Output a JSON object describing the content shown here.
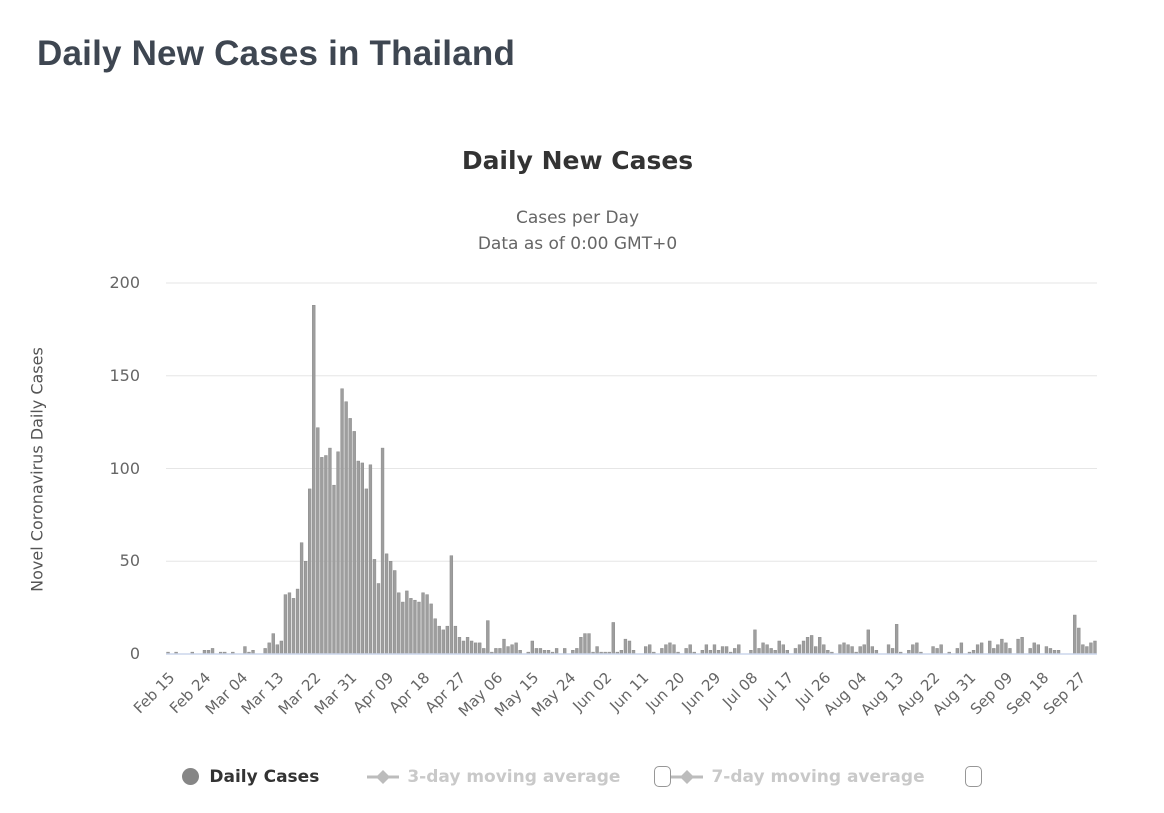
{
  "page": {
    "title": "Daily New Cases in Thailand"
  },
  "chart": {
    "title": "Daily New Cases",
    "subtitle_line1": "Cases per Day",
    "subtitle_line2": "Data as of 0:00 GMT+0",
    "y_axis_title": "Novel Coronavirus Daily Cases",
    "colors": {
      "bar_fill": "#9e9e9e",
      "bar_stroke": "#8a8a8a",
      "grid_line": "#e6e6e6",
      "axis_line": "#ccd6eb",
      "title_text": "#333333",
      "muted_text": "#666666",
      "page_title_text": "#3e4651",
      "disabled_legend_text": "#c9c9c9",
      "legend_marker": "#868686",
      "avg_marker": "#bcbcbc"
    }
  },
  "chart_data": {
    "type": "bar",
    "title": "Daily New Cases",
    "subtitle": [
      "Cases per Day",
      "Data as of 0:00 GMT+0"
    ],
    "xlabel": "",
    "ylabel": "Novel Coronavirus Daily Cases",
    "ylim": [
      0,
      200
    ],
    "yticks": [
      0,
      50,
      100,
      150,
      200
    ],
    "grid": true,
    "legend_position": "bottom",
    "legend_items": [
      "Daily Cases",
      "3-day moving average",
      "7-day moving average"
    ],
    "x_tick_interval": 9,
    "x_tick_labels": [
      "Feb 15",
      "Feb 24",
      "Mar 04",
      "Mar 13",
      "Mar 22",
      "Mar 31",
      "Apr 09",
      "Apr 18",
      "Apr 27",
      "May 06",
      "May 15",
      "May 24",
      "Jun 02",
      "Jun 11",
      "Jun 20",
      "Jun 29",
      "Jul 08",
      "Jul 17",
      "Jul 26",
      "Aug 04",
      "Aug 13",
      "Aug 22",
      "Aug 31",
      "Sep 09",
      "Sep 18",
      "Sep 27"
    ],
    "x_start_date": "Feb 15",
    "series": [
      {
        "name": "Daily Cases",
        "values": [
          1,
          0,
          1,
          0,
          0,
          0,
          1,
          0,
          0,
          2,
          2,
          3,
          0,
          1,
          1,
          0,
          1,
          0,
          0,
          4,
          1,
          2,
          0,
          0,
          3,
          6,
          11,
          5,
          7,
          32,
          33,
          30,
          35,
          60,
          50,
          89,
          188,
          122,
          106,
          107,
          111,
          91,
          109,
          143,
          136,
          127,
          120,
          104,
          103,
          89,
          102,
          51,
          38,
          111,
          54,
          50,
          45,
          33,
          28,
          34,
          30,
          29,
          28,
          33,
          32,
          27,
          19,
          15,
          13,
          15,
          53,
          15,
          9,
          7,
          9,
          7,
          6,
          6,
          3,
          18,
          1,
          3,
          3,
          8,
          4,
          5,
          6,
          2,
          0,
          1,
          7,
          3,
          3,
          2,
          2,
          1,
          3,
          0,
          3,
          0,
          2,
          3,
          9,
          11,
          11,
          1,
          4,
          1,
          1,
          1,
          17,
          1,
          2,
          8,
          7,
          2,
          0,
          0,
          4,
          5,
          1,
          0,
          3,
          5,
          6,
          5,
          1,
          0,
          3,
          5,
          1,
          0,
          2,
          5,
          2,
          5,
          2,
          4,
          4,
          1,
          3,
          5,
          0,
          0,
          2,
          13,
          3,
          6,
          5,
          3,
          2,
          7,
          5,
          2,
          0,
          3,
          5,
          7,
          9,
          10,
          4,
          9,
          5,
          2,
          1,
          0,
          5,
          6,
          5,
          4,
          1,
          4,
          5,
          13,
          4,
          2,
          0,
          0,
          5,
          3,
          16,
          1,
          0,
          2,
          5,
          6,
          1,
          0,
          0,
          4,
          3,
          5,
          0,
          1,
          0,
          3,
          6,
          0,
          1,
          2,
          5,
          6,
          0,
          7,
          3,
          5,
          8,
          6,
          3,
          0,
          8,
          9,
          0,
          3,
          6,
          5,
          0,
          4,
          3,
          2,
          2,
          0,
          0,
          0,
          21,
          14,
          5,
          4,
          6,
          7
        ]
      }
    ]
  }
}
